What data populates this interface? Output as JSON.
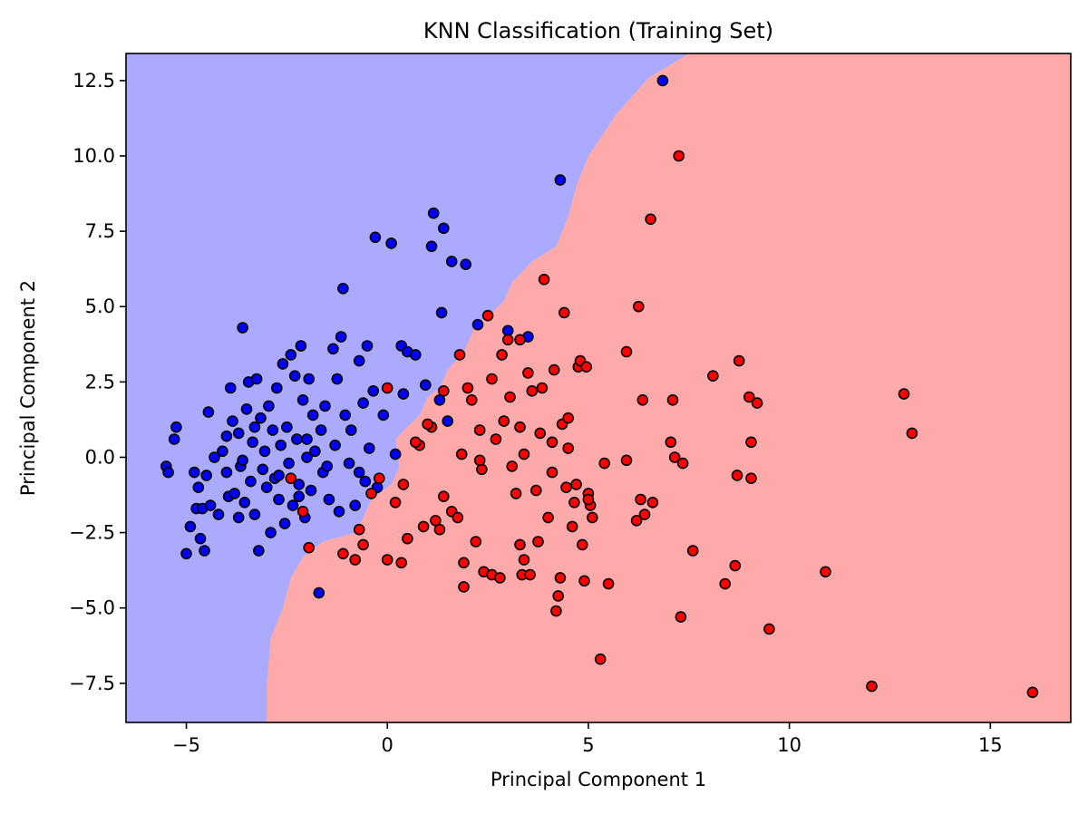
{
  "chart_data": {
    "type": "scatter",
    "title": "KNN Classification (Training Set)",
    "xlabel": "Principal Component 1",
    "ylabel": "Principal Component 2",
    "xlim": [
      -6.5,
      17.0
    ],
    "ylim": [
      -8.8,
      13.4
    ],
    "x_ticks": [
      -5,
      0,
      5,
      10,
      15
    ],
    "x_tick_labels": [
      "−5",
      "0",
      "5",
      "10",
      "15"
    ],
    "y_ticks": [
      -7.5,
      -5.0,
      -2.5,
      0.0,
      2.5,
      5.0,
      7.5,
      10.0,
      12.5
    ],
    "y_tick_labels": [
      "−7.5",
      "−5.0",
      "−2.5",
      "0.0",
      "2.5",
      "5.0",
      "7.5",
      "10.0",
      "12.5"
    ],
    "grid": false,
    "colors": {
      "region_blue": "#aaaaff",
      "region_red": "#ffaaaa",
      "point_blue": "#0000ff",
      "point_red": "#ff0000",
      "edge": "#000000"
    },
    "decision_boundary": [
      [
        -3.0,
        -8.8
      ],
      [
        -3.0,
        -7.5
      ],
      [
        -2.9,
        -6.0
      ],
      [
        -2.6,
        -5.0
      ],
      [
        -2.4,
        -4.0
      ],
      [
        -2.1,
        -3.3
      ],
      [
        -1.6,
        -2.8
      ],
      [
        -0.8,
        -2.5
      ],
      [
        -0.6,
        -2.0
      ],
      [
        -0.4,
        -1.4
      ],
      [
        0.1,
        -0.9
      ],
      [
        0.3,
        -0.3
      ],
      [
        0.2,
        0.6
      ],
      [
        0.8,
        1.4
      ],
      [
        1.0,
        2.0
      ],
      [
        1.3,
        2.3
      ],
      [
        1.5,
        2.9
      ],
      [
        1.9,
        3.5
      ],
      [
        2.2,
        4.4
      ],
      [
        2.6,
        4.8
      ],
      [
        2.9,
        5.2
      ],
      [
        3.1,
        5.8
      ],
      [
        3.6,
        6.5
      ],
      [
        4.2,
        7.0
      ],
      [
        4.5,
        8.0
      ],
      [
        4.7,
        9.0
      ],
      [
        5.0,
        10.0
      ],
      [
        5.7,
        11.4
      ],
      [
        6.5,
        12.6
      ],
      [
        7.5,
        13.4
      ]
    ],
    "series": [
      {
        "class": "blue",
        "points": [
          [
            -5.5,
            -0.3
          ],
          [
            -5.45,
            -0.5
          ],
          [
            -5.3,
            0.6
          ],
          [
            -5.25,
            1.0
          ],
          [
            -5.0,
            -3.2
          ],
          [
            -4.9,
            -2.3
          ],
          [
            -4.8,
            -0.5
          ],
          [
            -4.75,
            -1.7
          ],
          [
            -4.7,
            -1.0
          ],
          [
            -4.65,
            -2.7
          ],
          [
            -4.6,
            -1.7
          ],
          [
            -4.55,
            -3.1
          ],
          [
            -4.5,
            -0.6
          ],
          [
            -4.45,
            1.5
          ],
          [
            -4.4,
            -1.6
          ],
          [
            -4.3,
            0.0
          ],
          [
            -4.2,
            -1.9
          ],
          [
            -4.1,
            0.2
          ],
          [
            -4.0,
            -0.5
          ],
          [
            -3.95,
            -1.3
          ],
          [
            -3.9,
            2.3
          ],
          [
            -3.85,
            1.2
          ],
          [
            -3.8,
            -1.2
          ],
          [
            -3.7,
            0.8
          ],
          [
            -3.65,
            -0.3
          ],
          [
            -3.6,
            4.3
          ],
          [
            -3.55,
            -1.5
          ],
          [
            -3.5,
            1.6
          ],
          [
            -3.45,
            2.5
          ],
          [
            -3.4,
            -0.8
          ],
          [
            -3.35,
            0.5
          ],
          [
            -3.3,
            -1.9
          ],
          [
            -3.25,
            2.6
          ],
          [
            -3.2,
            -3.1
          ],
          [
            -3.15,
            1.3
          ],
          [
            -3.1,
            -0.4
          ],
          [
            -3.05,
            0.2
          ],
          [
            -3.0,
            -1.0
          ],
          [
            -2.95,
            1.7
          ],
          [
            -2.9,
            -2.5
          ],
          [
            -2.85,
            0.9
          ],
          [
            -2.8,
            -0.7
          ],
          [
            -2.75,
            2.3
          ],
          [
            -2.7,
            -1.4
          ],
          [
            -2.65,
            0.4
          ],
          [
            -2.6,
            3.1
          ],
          [
            -2.55,
            -2.2
          ],
          [
            -2.5,
            1.0
          ],
          [
            -2.45,
            -0.2
          ],
          [
            -2.4,
            3.4
          ],
          [
            -2.35,
            -1.6
          ],
          [
            -2.3,
            2.7
          ],
          [
            -2.25,
            0.6
          ],
          [
            -2.2,
            -0.9
          ],
          [
            -2.15,
            3.7
          ],
          [
            -2.1,
            1.9
          ],
          [
            -2.05,
            -2.0
          ],
          [
            -2.0,
            0.0
          ],
          [
            -1.95,
            2.6
          ],
          [
            -1.9,
            -1.1
          ],
          [
            -1.85,
            1.4
          ],
          [
            -1.7,
            -4.5
          ],
          [
            -1.65,
            0.9
          ],
          [
            -1.6,
            -0.5
          ],
          [
            -1.55,
            1.7
          ],
          [
            -1.45,
            -1.4
          ],
          [
            -1.35,
            3.6
          ],
          [
            -1.3,
            0.4
          ],
          [
            -1.25,
            2.6
          ],
          [
            -1.2,
            -1.8
          ],
          [
            -1.15,
            4.0
          ],
          [
            -1.1,
            5.6
          ],
          [
            -1.05,
            1.4
          ],
          [
            -0.95,
            -0.2
          ],
          [
            -0.9,
            0.9
          ],
          [
            -0.8,
            -1.6
          ],
          [
            -0.7,
            3.2
          ],
          [
            -0.6,
            1.8
          ],
          [
            -0.55,
            -0.8
          ],
          [
            -0.5,
            3.7
          ],
          [
            -0.45,
            0.3
          ],
          [
            -0.35,
            2.2
          ],
          [
            -0.3,
            7.3
          ],
          [
            -0.25,
            -1.0
          ],
          [
            -0.1,
            1.4
          ],
          [
            0.1,
            7.1
          ],
          [
            0.2,
            0.1
          ],
          [
            0.35,
            3.7
          ],
          [
            0.4,
            2.1
          ],
          [
            0.5,
            3.5
          ],
          [
            0.7,
            3.4
          ],
          [
            0.95,
            2.4
          ],
          [
            1.1,
            7.0
          ],
          [
            1.15,
            8.1
          ],
          [
            1.3,
            1.9
          ],
          [
            1.35,
            4.8
          ],
          [
            1.4,
            7.6
          ],
          [
            1.5,
            1.2
          ],
          [
            1.6,
            6.5
          ],
          [
            1.95,
            6.4
          ],
          [
            2.25,
            4.4
          ],
          [
            3.0,
            4.2
          ],
          [
            3.5,
            4.0
          ],
          [
            4.3,
            9.2
          ],
          [
            6.85,
            12.5
          ],
          [
            -3.6,
            -0.1
          ],
          [
            -2.0,
            0.6
          ],
          [
            -2.7,
            -0.6
          ],
          [
            -1.5,
            -0.3
          ],
          [
            -3.3,
            1.0
          ],
          [
            -2.2,
            -1.3
          ],
          [
            -1.8,
            0.2
          ],
          [
            -4.0,
            0.7
          ],
          [
            -3.7,
            -2.0
          ],
          [
            -0.7,
            -0.5
          ]
        ]
      },
      {
        "class": "red",
        "points": [
          [
            -2.4,
            -0.7
          ],
          [
            -2.1,
            -1.8
          ],
          [
            -1.95,
            -3.0
          ],
          [
            -1.1,
            -3.2
          ],
          [
            -0.8,
            -3.4
          ],
          [
            -0.7,
            -2.4
          ],
          [
            -0.6,
            -2.9
          ],
          [
            -0.4,
            -1.2
          ],
          [
            -0.2,
            -0.7
          ],
          [
            0.0,
            2.3
          ],
          [
            0.0,
            -3.4
          ],
          [
            0.2,
            -1.5
          ],
          [
            0.35,
            -3.5
          ],
          [
            0.4,
            -0.9
          ],
          [
            0.5,
            -2.7
          ],
          [
            0.8,
            0.4
          ],
          [
            0.9,
            -2.3
          ],
          [
            1.1,
            1.0
          ],
          [
            1.2,
            -2.1
          ],
          [
            1.3,
            -2.4
          ],
          [
            1.4,
            2.2
          ],
          [
            1.4,
            -1.3
          ],
          [
            1.6,
            -1.8
          ],
          [
            1.75,
            -2.0
          ],
          [
            1.8,
            3.4
          ],
          [
            1.85,
            0.1
          ],
          [
            1.9,
            -3.5
          ],
          [
            1.9,
            -4.3
          ],
          [
            2.0,
            2.3
          ],
          [
            2.2,
            -2.8
          ],
          [
            2.3,
            0.9
          ],
          [
            2.35,
            -0.4
          ],
          [
            2.4,
            -3.8
          ],
          [
            2.5,
            4.7
          ],
          [
            2.6,
            -3.9
          ],
          [
            2.7,
            0.6
          ],
          [
            2.8,
            -4.0
          ],
          [
            2.85,
            3.4
          ],
          [
            2.9,
            1.2
          ],
          [
            3.0,
            3.9
          ],
          [
            3.05,
            2.0
          ],
          [
            3.1,
            -0.3
          ],
          [
            3.2,
            -1.2
          ],
          [
            3.3,
            -2.9
          ],
          [
            3.3,
            3.9
          ],
          [
            3.35,
            -3.9
          ],
          [
            3.4,
            -3.4
          ],
          [
            3.5,
            2.8
          ],
          [
            3.55,
            -3.9
          ],
          [
            3.6,
            2.2
          ],
          [
            3.75,
            -2.8
          ],
          [
            3.8,
            0.8
          ],
          [
            3.85,
            2.3
          ],
          [
            3.9,
            5.9
          ],
          [
            4.0,
            -2.0
          ],
          [
            4.1,
            0.5
          ],
          [
            4.15,
            2.9
          ],
          [
            4.2,
            -5.1
          ],
          [
            4.25,
            -4.6
          ],
          [
            4.3,
            -4.0
          ],
          [
            4.35,
            1.1
          ],
          [
            4.4,
            4.8
          ],
          [
            4.45,
            -1.0
          ],
          [
            4.5,
            1.3
          ],
          [
            4.6,
            -2.3
          ],
          [
            4.65,
            -1.5
          ],
          [
            4.7,
            -0.9
          ],
          [
            4.75,
            3.0
          ],
          [
            4.8,
            3.2
          ],
          [
            4.85,
            -2.9
          ],
          [
            4.9,
            -4.1
          ],
          [
            4.95,
            3.0
          ],
          [
            5.0,
            -1.2
          ],
          [
            5.05,
            -1.6
          ],
          [
            5.1,
            -2.0
          ],
          [
            5.3,
            -6.7
          ],
          [
            5.4,
            -0.2
          ],
          [
            5.5,
            -4.2
          ],
          [
            5.95,
            3.5
          ],
          [
            5.95,
            -0.1
          ],
          [
            6.2,
            -2.1
          ],
          [
            6.25,
            5.0
          ],
          [
            6.3,
            -1.4
          ],
          [
            6.35,
            1.9
          ],
          [
            6.4,
            -1.9
          ],
          [
            6.55,
            7.9
          ],
          [
            6.6,
            -1.5
          ],
          [
            7.05,
            0.5
          ],
          [
            7.1,
            1.9
          ],
          [
            7.15,
            0.0
          ],
          [
            7.25,
            10.0
          ],
          [
            7.3,
            -5.3
          ],
          [
            7.35,
            -0.2
          ],
          [
            7.6,
            -3.1
          ],
          [
            8.1,
            2.7
          ],
          [
            8.4,
            -4.2
          ],
          [
            8.65,
            -3.6
          ],
          [
            8.7,
            -0.6
          ],
          [
            8.75,
            3.2
          ],
          [
            9.0,
            2.0
          ],
          [
            9.05,
            -0.7
          ],
          [
            9.05,
            0.5
          ],
          [
            9.2,
            1.8
          ],
          [
            9.5,
            -5.7
          ],
          [
            10.9,
            -3.8
          ],
          [
            12.05,
            -7.6
          ],
          [
            12.85,
            2.1
          ],
          [
            13.05,
            0.8
          ],
          [
            16.05,
            -7.8
          ],
          [
            0.7,
            0.5
          ],
          [
            1.0,
            1.1
          ],
          [
            2.1,
            1.9
          ],
          [
            2.3,
            -0.1
          ],
          [
            3.3,
            1.0
          ],
          [
            3.7,
            -1.1
          ],
          [
            4.1,
            -0.5
          ],
          [
            4.5,
            0.3
          ],
          [
            5.0,
            -1.4
          ],
          [
            2.6,
            2.6
          ],
          [
            3.4,
            0.1
          ]
        ]
      }
    ]
  }
}
